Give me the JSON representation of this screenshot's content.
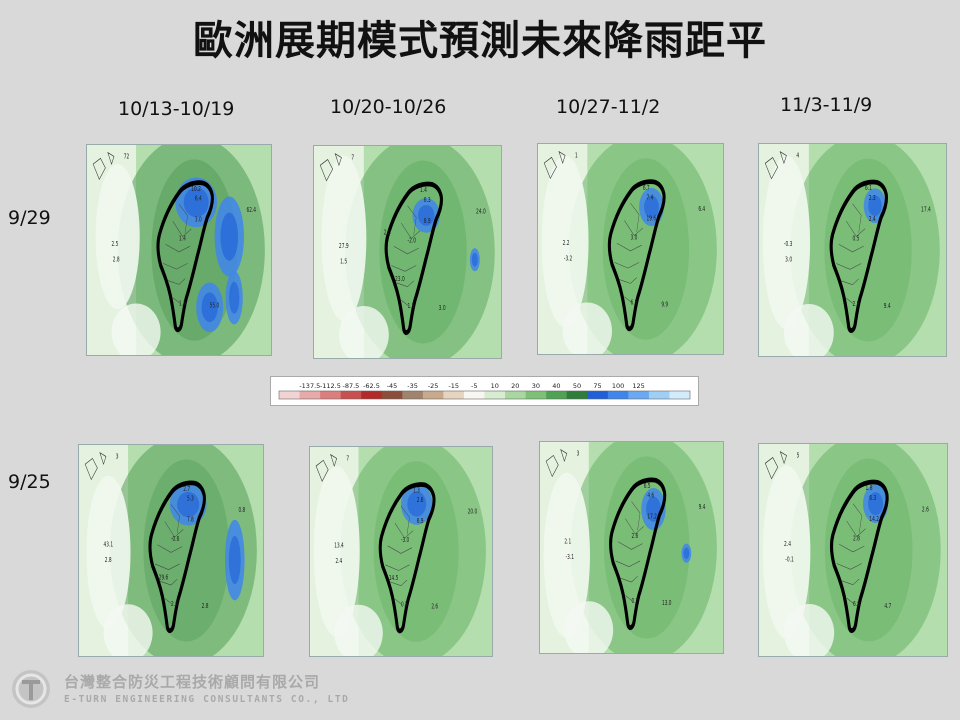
{
  "title": "歐洲展期模式預測未來降雨距平",
  "columns": [
    "10/13-10/19",
    "10/20-10/26",
    "10/27-11/2",
    "11/3-11/9"
  ],
  "rows": [
    "9/29",
    "9/25"
  ],
  "colorbar": {
    "ticks": [
      "-137.5",
      "-112.5",
      "-87.5",
      "-62.5",
      "-45",
      "-35",
      "-25",
      "-15",
      "-5",
      "10",
      "20",
      "30",
      "40",
      "50",
      "75",
      "100",
      "125"
    ],
    "colors": [
      "#f2d3d3",
      "#e8a9a9",
      "#dc7e7e",
      "#c95050",
      "#b22a2a",
      "#8b4e3a",
      "#a0826d",
      "#c9a98c",
      "#e6d4c1",
      "#f8f6f0",
      "#d7ecd0",
      "#a8d8a0",
      "#7ec176",
      "#4fa253",
      "#2f7d3a",
      "#1f5fd8",
      "#3f86ec",
      "#6aa8f2",
      "#a0cff6",
      "#d2ecfb"
    ]
  },
  "panels": [
    {
      "row": "9/29",
      "col": "10/13-10/19",
      "labels": [
        "72",
        "10.2",
        "6.4",
        "62.4",
        "3.0",
        "2.5",
        "2.8",
        "1.4",
        "55.0",
        "1.3"
      ]
    },
    {
      "row": "9/29",
      "col": "10/20-10/26",
      "labels": [
        "7",
        "1.4",
        "6.3",
        "24.0",
        "8.9",
        "27.9",
        "1.5",
        "-2.0",
        "3.0",
        "1.3",
        "23.0",
        "2.0"
      ]
    },
    {
      "row": "9/29",
      "col": "10/27-11/2",
      "labels": [
        "1",
        "6.7",
        "7.4",
        "6.4",
        "19.6",
        "2.2",
        "-3.2",
        "3.0",
        "9.9",
        "6.5"
      ]
    },
    {
      "row": "9/29",
      "col": "11/3-11/9",
      "labels": [
        "4",
        "6.1",
        "2.3",
        "17.4",
        "2.4",
        "-0.3",
        "3.0",
        "0.5",
        "9.4",
        "2.8"
      ]
    },
    {
      "row": "9/25",
      "col": "10/13-10/19",
      "labels": [
        "3",
        "2.7",
        "5.3",
        "0.8",
        "7.8",
        "43.1",
        "2.8",
        "-0.6",
        "2.8",
        "2.6",
        "29.6"
      ]
    },
    {
      "row": "9/25",
      "col": "10/20-10/26",
      "labels": [
        "7",
        "1.3",
        "2.6",
        "20.0",
        "6.9",
        "13.4",
        "2.4",
        "-3.0",
        "2.6",
        "0.5",
        "14.5"
      ]
    },
    {
      "row": "9/25",
      "col": "10/27-11/2",
      "labels": [
        "3",
        "6.5",
        "4.6",
        "9.4",
        "17.2",
        "2.1",
        "-3.1",
        "2.6",
        "13.0",
        "0.7"
      ]
    },
    {
      "row": "9/25",
      "col": "11/3-11/9",
      "labels": [
        "5",
        "1.8",
        "6.3",
        "2.6",
        "14.2",
        "2.4",
        "-0.1",
        "2.8",
        "4.7",
        "6.8"
      ]
    }
  ],
  "company": {
    "name_cn": "台灣整合防災工程技術顧問有限公司",
    "name_en": "E-TURN ENGINEERING CONSULTANTS CO., LTD"
  }
}
